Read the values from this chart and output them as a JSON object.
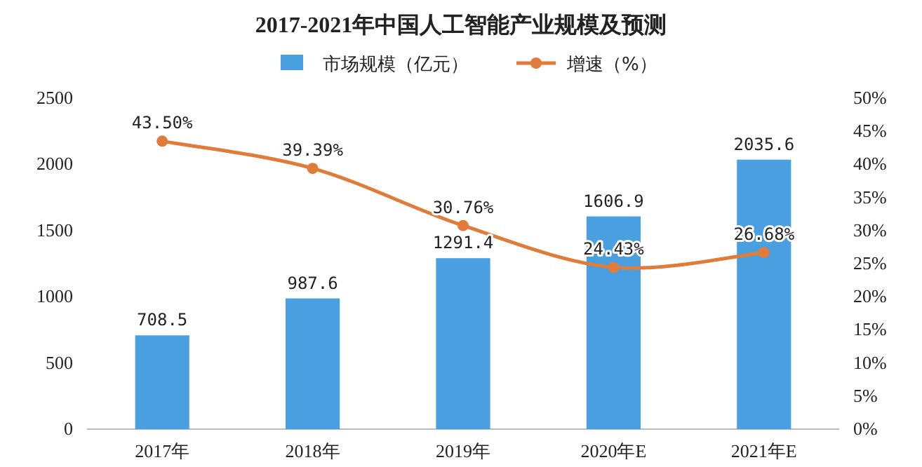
{
  "chart_data": {
    "type": "bar",
    "title": "2017-2021年中国人工智能产业规模及预测",
    "categories": [
      "2017年",
      "2018年",
      "2019年",
      "2020年E",
      "2021年E"
    ],
    "series": [
      {
        "name": "市场规模（亿元）",
        "color": "#4a9fe0",
        "values": [
          708.5,
          987.6,
          1291.4,
          1606.9,
          2035.6
        ],
        "value_labels": [
          "708.5",
          "987.6",
          "1291.4",
          "1606.9",
          "2035.6"
        ]
      },
      {
        "name": "增速（%）",
        "type": "line",
        "axis": "y2",
        "color": "#e07b39",
        "values": [
          43.5,
          39.39,
          30.76,
          24.43,
          26.68
        ],
        "value_labels": [
          "43.50%",
          "39.39%",
          "30.76%",
          "24.43%",
          "26.68%"
        ]
      }
    ],
    "ylim": [
      0,
      2500
    ],
    "yticks": [
      0,
      500,
      1000,
      1500,
      2000,
      2500
    ],
    "y2lim": [
      0,
      50
    ],
    "y2ticks": [
      {
        "value": 0,
        "label": "0%"
      },
      {
        "value": 5,
        "label": "5%"
      },
      {
        "value": 10,
        "label": "10%"
      },
      {
        "value": 15,
        "label": "15%"
      },
      {
        "value": 20,
        "label": "20%"
      },
      {
        "value": 25,
        "label": "25%"
      },
      {
        "value": 30,
        "label": "30%"
      },
      {
        "value": 35,
        "label": "35%"
      },
      {
        "value": 40,
        "label": "40%"
      },
      {
        "value": 45,
        "label": "45%"
      },
      {
        "value": 50,
        "label": "50%"
      }
    ],
    "legend": "top",
    "marker": "circle"
  }
}
